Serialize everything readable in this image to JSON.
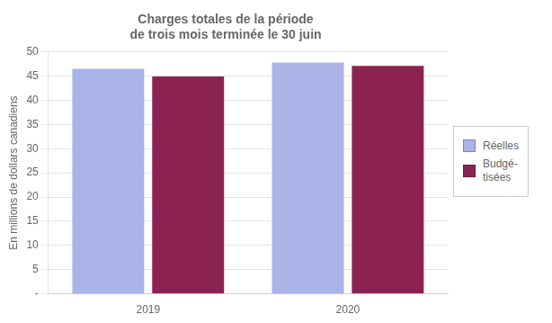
{
  "chart_data": {
    "type": "bar",
    "title": "Charges totales de la période\nde trois mois terminée le 30 juin",
    "y_label": "En millions de dollars canadiens",
    "categories": [
      "2019",
      "2020"
    ],
    "series": [
      {
        "name": "Réelles",
        "color": "#aab4e8",
        "values": [
          46.5,
          47.8
        ]
      },
      {
        "name": "Budgé-\ntisées",
        "color": "#8b2252",
        "values": [
          44.9,
          47.1
        ]
      }
    ],
    "ylim": [
      0,
      50
    ],
    "yticks": [
      {
        "value": 0,
        "label": "-"
      },
      5,
      10,
      15,
      20,
      25,
      30,
      35,
      40,
      45,
      50
    ],
    "grid": true,
    "legend": "right"
  }
}
